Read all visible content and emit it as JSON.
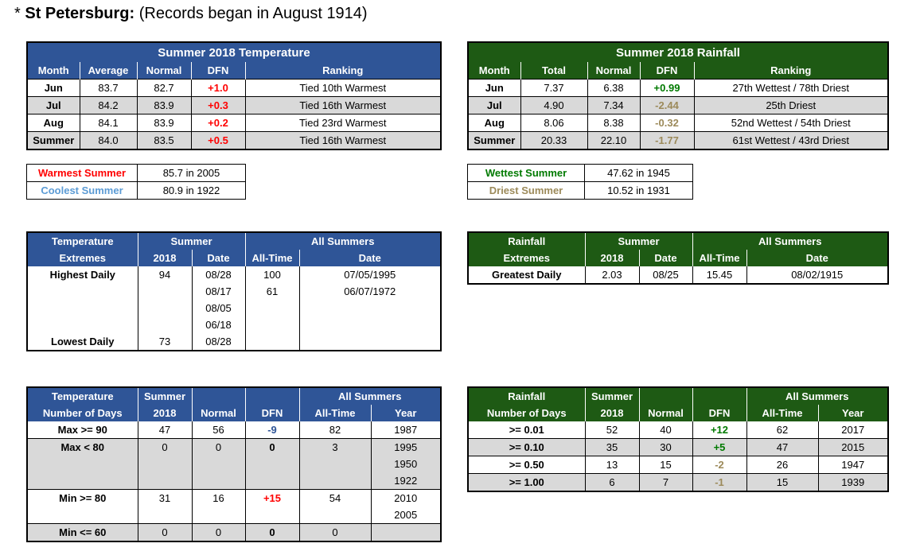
{
  "title": {
    "star": "*",
    "bold": "St Petersburg:",
    "rest": "(Records began in August 1914)"
  },
  "temp": {
    "caption": "Summer 2018 Temperature",
    "headers": [
      "Month",
      "Average",
      "Normal",
      "DFN",
      "Ranking"
    ],
    "rows": [
      {
        "month": "Jun",
        "avg": "83.7",
        "normal": "82.7",
        "dfn": "+1.0",
        "rank": "Tied 10th Warmest"
      },
      {
        "month": "Jul",
        "avg": "84.2",
        "normal": "83.9",
        "dfn": "+0.3",
        "rank": "Tied 16th Warmest"
      },
      {
        "month": "Aug",
        "avg": "84.1",
        "normal": "83.9",
        "dfn": "+0.2",
        "rank": "Tied 23rd Warmest"
      },
      {
        "month": "Summer",
        "avg": "84.0",
        "normal": "83.5",
        "dfn": "+0.5",
        "rank": "Tied 16th Warmest"
      }
    ]
  },
  "rain": {
    "caption": "Summer 2018 Rainfall",
    "headers": [
      "Month",
      "Total",
      "Normal",
      "DFN",
      "Ranking"
    ],
    "rows": [
      {
        "month": "Jun",
        "total": "7.37",
        "normal": "6.38",
        "dfn": "+0.99",
        "rank": "27th Wettest / 78th Driest"
      },
      {
        "month": "Jul",
        "total": "4.90",
        "normal": "7.34",
        "dfn": "-2.44",
        "rank": "25th Driest"
      },
      {
        "month": "Aug",
        "total": "8.06",
        "normal": "8.38",
        "dfn": "-0.32",
        "rank": "52nd Wettest / 54th Driest"
      },
      {
        "month": "Summer",
        "total": "20.33",
        "normal": "22.10",
        "dfn": "-1.77",
        "rank": "61st Wettest / 43rd Driest"
      }
    ]
  },
  "temp_records": {
    "warmest_label": "Warmest Summer",
    "warmest_value": "85.7 in 2005",
    "coolest_label": "Coolest Summer",
    "coolest_value": "80.9 in 1922"
  },
  "rain_records": {
    "wettest_label": "Wettest Summer",
    "wettest_value": "47.62 in 1945",
    "driest_label": "Driest Summer",
    "driest_value": "10.52 in 1931"
  },
  "temp_extremes": {
    "h1": [
      "Temperature",
      "Summer",
      "All Summers"
    ],
    "h2": [
      "Extremes",
      "2018",
      "Date",
      "All-Time",
      "Date"
    ],
    "highest_label": "Highest Daily",
    "highest_value": "94",
    "highest_dates": [
      "08/28",
      "08/17",
      "08/05",
      "06/18"
    ],
    "alltime_high": "100",
    "alltime_high_date": "07/05/1995",
    "lowest_label": "Lowest Daily",
    "lowest_value": "73",
    "lowest_date": "08/28",
    "alltime_low": "61",
    "alltime_low_date": "06/07/1972"
  },
  "rain_extremes": {
    "h1": [
      "Rainfall",
      "Summer",
      "All Summers"
    ],
    "h2": [
      "Extremes",
      "2018",
      "Date",
      "All-Time",
      "Date"
    ],
    "label": "Greatest Daily",
    "value": "2.03",
    "date": "08/25",
    "alltime": "15.45",
    "alltime_date": "08/02/1915"
  },
  "temp_days": {
    "h1": [
      "Temperature",
      "Summer",
      "All Summers"
    ],
    "h2": [
      "Number of Days",
      "2018",
      "Normal",
      "DFN",
      "All-Time",
      "Year"
    ],
    "max90": {
      "label": "Max >= 90",
      "v": "47",
      "normal": "56",
      "dfn": "-9",
      "alltime": "82",
      "year": "1987"
    },
    "max80": {
      "label": "Max < 80",
      "v": "0",
      "normal": "0",
      "dfn": "0",
      "alltime": "3",
      "years": [
        "1995",
        "1950",
        "1922"
      ]
    },
    "min80": {
      "label": "Min >= 80",
      "v": "31",
      "normal": "16",
      "dfn": "+15",
      "alltime": "54",
      "years": [
        "2010",
        "2005"
      ]
    },
    "min60": {
      "label": "Min <= 60",
      "v": "0",
      "normal": "0",
      "dfn": "0",
      "alltime": "0",
      "year": ""
    }
  },
  "rain_days": {
    "h1": [
      "Rainfall",
      "Summer",
      "All Summers"
    ],
    "h2": [
      "Number of Days",
      "2018",
      "Normal",
      "DFN",
      "All-Time",
      "Year"
    ],
    "rows": [
      {
        "label": ">= 0.01",
        "v": "52",
        "normal": "40",
        "dfn": "+12",
        "alltime": "62",
        "year": "2017"
      },
      {
        "label": ">= 0.10",
        "v": "35",
        "normal": "30",
        "dfn": "+5",
        "alltime": "47",
        "year": "2015"
      },
      {
        "label": ">= 0.50",
        "v": "13",
        "normal": "15",
        "dfn": "-2",
        "alltime": "26",
        "year": "1947"
      },
      {
        "label": ">= 1.00",
        "v": "6",
        "normal": "7",
        "dfn": "-1",
        "alltime": "15",
        "year": "1939"
      }
    ]
  },
  "colors": {
    "blue_header": "#2f5597",
    "green_header": "#1e5a14",
    "grey_row": "#d9d9d9",
    "positive_temp": "#ff0000",
    "negative_temp": "#2f5597",
    "positive_rain": "#007a00",
    "negative_rain": "#9c8a5a"
  }
}
